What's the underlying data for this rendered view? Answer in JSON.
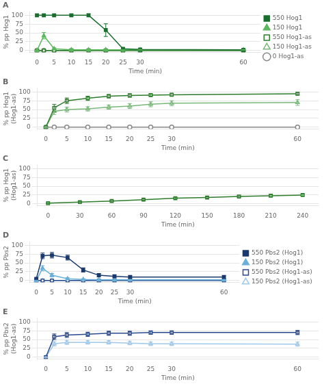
{
  "chart_data": [
    {
      "type": "line",
      "title": "A",
      "x_label": "Time (min)",
      "y_label": "% pp Hog1",
      "xlim": [
        -2,
        65
      ],
      "xticks": [
        0,
        5,
        10,
        15,
        20,
        25,
        30,
        60
      ],
      "ylim": [
        -5,
        110
      ],
      "yticks": [
        0,
        25,
        50,
        75,
        100
      ],
      "grid": true,
      "legend": "right",
      "x": [
        0,
        2,
        5,
        10,
        15,
        20,
        25,
        30,
        60
      ],
      "series": [
        {
          "name": "550 Hog1",
          "color": "#1a6e2e",
          "marker": "square",
          "values": [
            100,
            100,
            100,
            100,
            100,
            58,
            5,
            3,
            2
          ],
          "errors": [
            3,
            3,
            3,
            3,
            4,
            18,
            3,
            2,
            1
          ]
        },
        {
          "name": "150 Hog1",
          "color": "#5cb85c",
          "marker": "triangle",
          "values": [
            0,
            42,
            5,
            2,
            2,
            2,
            2,
            2,
            2
          ],
          "errors": [
            1,
            9,
            3,
            2,
            2,
            2,
            1,
            1,
            1
          ]
        },
        {
          "name": "550 Hog1-as",
          "color": "#2d7d2d",
          "marker": "square-open",
          "values": [
            0,
            0,
            0,
            0,
            0,
            0,
            0,
            0,
            0
          ]
        },
        {
          "name": "150 Hog1-as",
          "color": "#7ab87a",
          "marker": "triangle-open",
          "values": [
            0,
            0,
            0,
            0,
            0,
            0,
            0,
            0,
            0
          ]
        },
        {
          "name": "0 Hog1-as",
          "color": "#888888",
          "marker": "circle-open",
          "values": [
            0,
            0,
            0,
            0,
            0,
            0,
            0,
            0,
            0
          ]
        }
      ]
    },
    {
      "type": "line",
      "title": "B",
      "x_label": "Time (min)",
      "y_label": "% pp Hog1\n(Hog1-as)",
      "xlim": [
        -2,
        65
      ],
      "xticks": [
        0,
        5,
        10,
        15,
        20,
        25,
        30,
        60
      ],
      "ylim": [
        -5,
        110
      ],
      "yticks": [
        0,
        25,
        50,
        75,
        100
      ],
      "grid": true,
      "x": [
        0,
        2,
        5,
        10,
        15,
        20,
        25,
        30,
        60
      ],
      "series": [
        {
          "name": "550 Hog1-as",
          "color": "#2d7d2d",
          "marker": "square-open",
          "values": [
            0,
            55,
            75,
            82,
            88,
            90,
            91,
            92,
            95
          ],
          "errors": [
            1,
            10,
            8,
            6,
            5,
            5,
            4,
            4,
            4
          ]
        },
        {
          "name": "150 Hog1-as",
          "color": "#7ab87a",
          "marker": "triangle-open",
          "values": [
            0,
            45,
            50,
            52,
            57,
            60,
            65,
            68,
            70
          ],
          "errors": [
            1,
            9,
            7,
            6,
            6,
            7,
            7,
            7,
            8
          ]
        },
        {
          "name": "0 Hog1-as",
          "color": "#888888",
          "marker": "circle-open",
          "values": [
            0,
            0,
            0,
            0,
            0,
            0,
            0,
            0,
            0
          ]
        }
      ]
    },
    {
      "type": "line",
      "title": "C",
      "x_label": "Time (min)",
      "y_label": "% pp Hog1\n(Hog1-as)",
      "xlim": [
        -10,
        255
      ],
      "xticks": [
        0,
        30,
        60,
        90,
        120,
        150,
        180,
        210,
        240
      ],
      "ylim": [
        -5,
        110
      ],
      "yticks": [
        0,
        25,
        50,
        75,
        100
      ],
      "grid": true,
      "x": [
        0,
        30,
        60,
        90,
        120,
        150,
        180,
        210,
        240
      ],
      "series": [
        {
          "name": "550 Hog1-as",
          "color": "#2d7d2d",
          "marker": "square-open",
          "values": [
            2,
            5,
            8,
            12,
            16,
            18,
            21,
            23,
            25
          ],
          "errors": [
            1,
            1,
            2,
            2,
            2,
            2,
            2,
            3,
            3
          ]
        }
      ]
    },
    {
      "type": "line",
      "title": "D",
      "x_label": "Time (min)",
      "y_label": "% pp Pbs2",
      "xlim": [
        -2,
        65
      ],
      "xticks": [
        0,
        5,
        10,
        15,
        20,
        25,
        30,
        60
      ],
      "ylim": [
        -5,
        110
      ],
      "yticks": [
        0,
        25,
        50,
        75,
        100
      ],
      "grid": true,
      "legend": "right",
      "x": [
        0,
        2,
        5,
        10,
        15,
        20,
        25,
        30,
        60
      ],
      "series": [
        {
          "name": "550 Pbs2 (Hog1)",
          "color": "#1a3a6e",
          "marker": "square",
          "values": [
            5,
            70,
            72,
            65,
            30,
            15,
            12,
            10,
            10
          ],
          "errors": [
            2,
            8,
            8,
            7,
            6,
            5,
            4,
            4,
            4
          ]
        },
        {
          "name": "150 Pbs2 (Hog1)",
          "color": "#6ab0d8",
          "marker": "triangle",
          "values": [
            0,
            35,
            15,
            5,
            3,
            2,
            2,
            2,
            2
          ],
          "errors": [
            1,
            7,
            5,
            3,
            2,
            1,
            1,
            1,
            1
          ]
        },
        {
          "name": "550 Pbs2 (Hog1-as)",
          "color": "#2a4a8e",
          "marker": "square-open",
          "values": [
            0,
            0,
            0,
            0,
            0,
            0,
            0,
            0,
            0
          ]
        },
        {
          "name": "150 Pbs2 (Hog1-as)",
          "color": "#a0c8e8",
          "marker": "triangle-open",
          "values": [
            0,
            0,
            0,
            0,
            0,
            0,
            0,
            0,
            0
          ]
        }
      ]
    },
    {
      "type": "line",
      "title": "E",
      "x_label": "Time (min)",
      "y_label": "% pp Pbs2\n(Hog1-as)",
      "xlim": [
        -2,
        65
      ],
      "xticks": [
        0,
        5,
        10,
        15,
        20,
        25,
        30,
        60
      ],
      "ylim": [
        -5,
        110
      ],
      "yticks": [
        0,
        25,
        50,
        75,
        100
      ],
      "grid": true,
      "x": [
        0,
        2,
        5,
        10,
        15,
        20,
        25,
        30,
        60
      ],
      "series": [
        {
          "name": "550 Pbs2 (Hog1-as)",
          "color": "#2a4a8e",
          "marker": "square-open",
          "values": [
            0,
            58,
            63,
            65,
            68,
            68,
            70,
            70,
            70
          ],
          "errors": [
            1,
            8,
            7,
            6,
            6,
            6,
            5,
            5,
            6
          ]
        },
        {
          "name": "150 Pbs2 (Hog1-as)",
          "color": "#a0c8e8",
          "marker": "triangle-open",
          "values": [
            0,
            38,
            42,
            42,
            42,
            40,
            38,
            38,
            37
          ],
          "errors": [
            1,
            6,
            6,
            5,
            5,
            5,
            5,
            5,
            6
          ]
        }
      ]
    }
  ]
}
